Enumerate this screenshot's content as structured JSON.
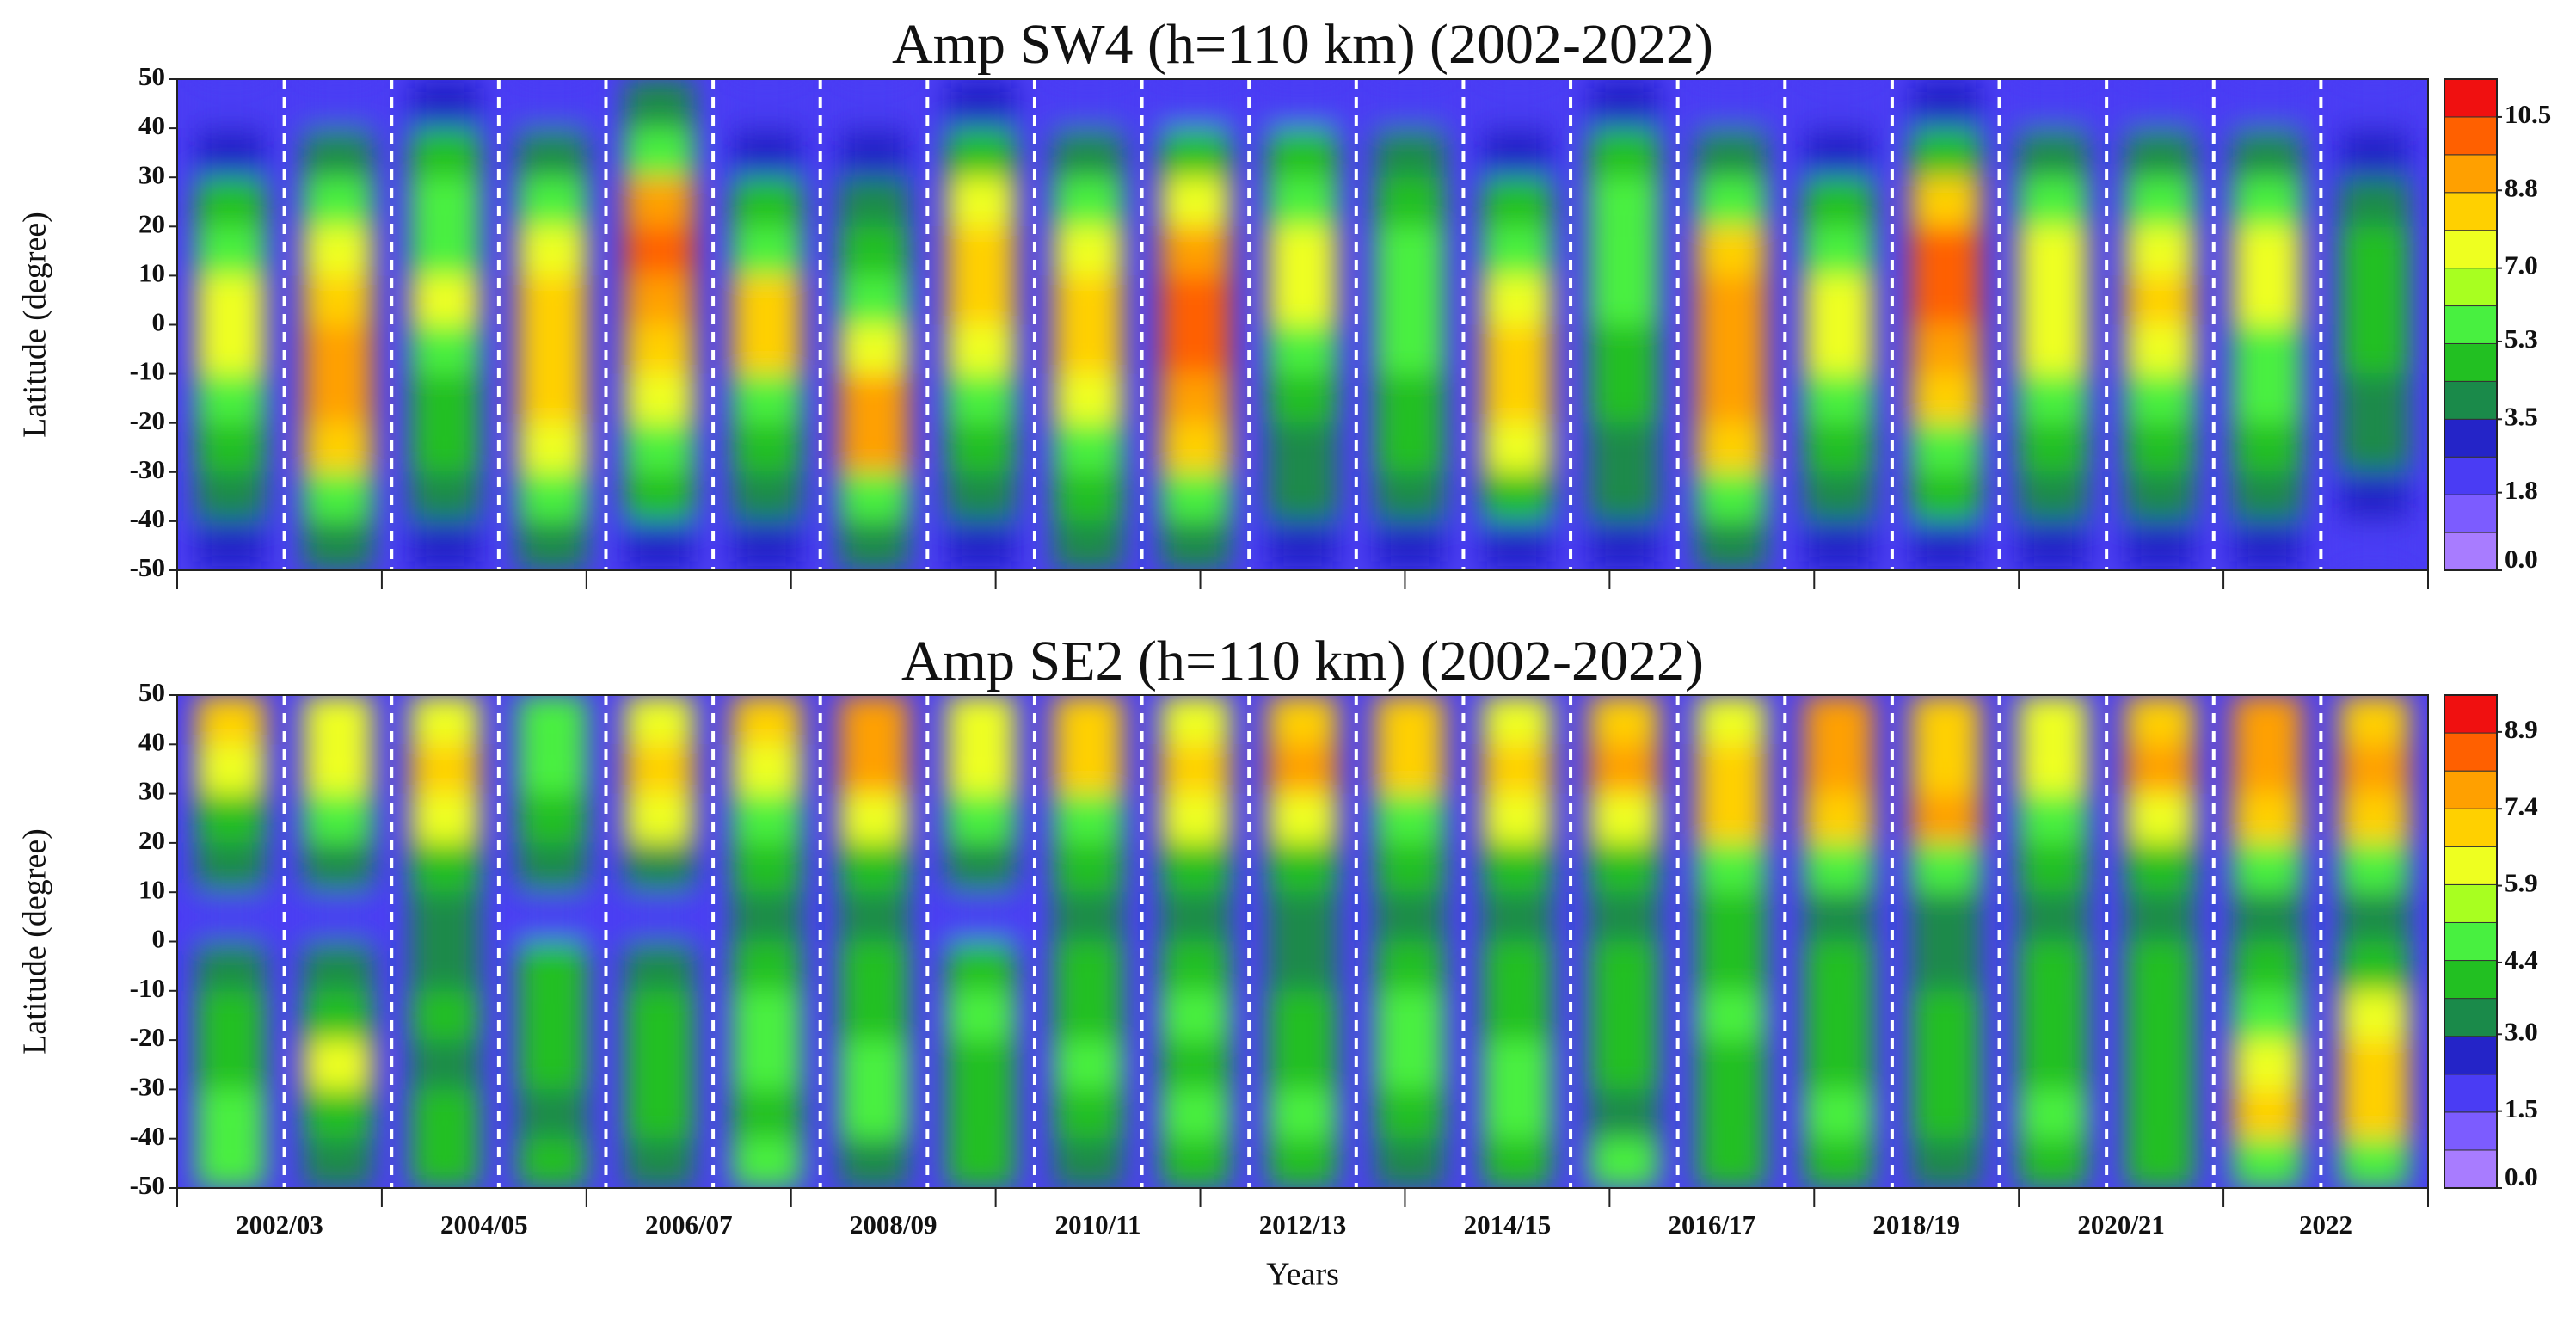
{
  "chart_data": [
    {
      "type": "heatmap",
      "title": "Amp SW4 (h=110 km) (2002-2022)",
      "ylabel": "Latitude (degree)",
      "ylim": [
        -50,
        50
      ],
      "yticks": [
        -50,
        -40,
        -30,
        -20,
        -10,
        0,
        10,
        20,
        30,
        40,
        50
      ],
      "y": [
        45,
        35,
        25,
        15,
        5,
        -5,
        -15,
        -25,
        -35,
        -45
      ],
      "z": [
        [
          2,
          3,
          5,
          6,
          7,
          7,
          6,
          5,
          4,
          3
        ],
        [
          2,
          4,
          6,
          7,
          8,
          9,
          9,
          8,
          6,
          4
        ],
        [
          3,
          5,
          6,
          6,
          7,
          6,
          5,
          5,
          4,
          3
        ],
        [
          2,
          4,
          6,
          7,
          8,
          8,
          8,
          7,
          6,
          4
        ],
        [
          4,
          6,
          9,
          10,
          9,
          8,
          7,
          6,
          5,
          3
        ],
        [
          2,
          3,
          5,
          6,
          8,
          8,
          6,
          5,
          4,
          3
        ],
        [
          2,
          3,
          4,
          5,
          6,
          7,
          9,
          9,
          6,
          4
        ],
        [
          3,
          5,
          7,
          8,
          8,
          7,
          6,
          5,
          4,
          3
        ],
        [
          2,
          4,
          6,
          7,
          8,
          8,
          7,
          6,
          5,
          4
        ],
        [
          2,
          5,
          7,
          9,
          10,
          10,
          9,
          8,
          6,
          4
        ],
        [
          2,
          5,
          6,
          7,
          7,
          6,
          5,
          4,
          4,
          3
        ],
        [
          2,
          4,
          5,
          6,
          6,
          6,
          5,
          5,
          4,
          3
        ],
        [
          2,
          3,
          5,
          6,
          7,
          8,
          8,
          7,
          5,
          3
        ],
        [
          3,
          5,
          6,
          6,
          6,
          5,
          5,
          4,
          4,
          3
        ],
        [
          2,
          4,
          6,
          8,
          9,
          9,
          9,
          8,
          6,
          4
        ],
        [
          2,
          3,
          5,
          6,
          7,
          7,
          6,
          5,
          4,
          3
        ],
        [
          3,
          5,
          8,
          10,
          10,
          9,
          8,
          6,
          5,
          3
        ],
        [
          2,
          4,
          6,
          7,
          7,
          7,
          6,
          5,
          4,
          3
        ],
        [
          2,
          4,
          6,
          7,
          8,
          7,
          6,
          5,
          4,
          3
        ],
        [
          2,
          4,
          6,
          7,
          7,
          6,
          6,
          5,
          4,
          3
        ],
        [
          2,
          3,
          4,
          5,
          5,
          5,
          4,
          4,
          3,
          2
        ]
      ],
      "zlim": [
        0,
        11.375
      ],
      "colors": [
        "#a87cff",
        "#7c5cff",
        "#4a3cf4",
        "#2424c8",
        "#1a8a4a",
        "#22c022",
        "#48f040",
        "#a8ff20",
        "#eeff20",
        "#ffd000",
        "#ffa000",
        "#ff6000",
        "#f01010"
      ],
      "cticks": [
        {
          "value": 0,
          "label": "0.0"
        },
        1.8,
        3.5,
        5.3,
        {
          "value": 7,
          "label": "7.0"
        },
        8.8,
        10.5
      ]
    },
    {
      "type": "heatmap",
      "title": "Amp SE2 (h=110 km) (2002-2022)",
      "ylabel": "Latitude (degree)",
      "xlabel": "Years",
      "categories": [
        "2002/03",
        "2004/05",
        "2006/07",
        "2008/09",
        "2010/11",
        "2012/13",
        "2014/15",
        "2016/17",
        "2018/19",
        "2020/21",
        "2022"
      ],
      "ylim": [
        -50,
        50
      ],
      "yticks": [
        -50,
        -40,
        -30,
        -20,
        -10,
        0,
        10,
        20,
        30,
        40,
        50
      ],
      "y": [
        45,
        35,
        25,
        15,
        5,
        -5,
        -15,
        -25,
        -35,
        -45
      ],
      "z": [
        [
          7,
          6,
          4,
          3,
          2,
          3,
          4,
          4,
          5,
          5
        ],
        [
          6,
          6,
          5,
          3,
          2,
          3,
          4,
          6,
          4,
          3
        ],
        [
          6,
          7,
          6,
          4,
          3,
          3,
          4,
          3,
          4,
          4
        ],
        [
          5,
          5,
          4,
          3,
          2,
          4,
          4,
          4,
          3,
          4
        ],
        [
          6,
          7,
          6,
          3,
          2,
          3,
          4,
          4,
          4,
          3
        ],
        [
          7,
          6,
          5,
          4,
          3,
          4,
          5,
          5,
          4,
          5
        ],
        [
          8,
          8,
          6,
          4,
          3,
          4,
          4,
          5,
          5,
          3
        ],
        [
          6,
          6,
          5,
          3,
          2,
          4,
          5,
          4,
          4,
          4
        ],
        [
          7,
          7,
          5,
          4,
          3,
          4,
          4,
          5,
          4,
          3
        ],
        [
          6,
          7,
          6,
          4,
          3,
          4,
          5,
          4,
          5,
          4
        ],
        [
          7,
          8,
          6,
          4,
          3,
          3,
          4,
          4,
          5,
          4
        ],
        [
          7,
          7,
          5,
          4,
          3,
          4,
          5,
          5,
          4,
          3
        ],
        [
          6,
          7,
          6,
          4,
          3,
          4,
          4,
          5,
          5,
          4
        ],
        [
          7,
          8,
          6,
          4,
          3,
          4,
          4,
          4,
          3,
          5
        ],
        [
          6,
          7,
          7,
          5,
          4,
          4,
          5,
          4,
          4,
          4
        ],
        [
          8,
          8,
          7,
          5,
          3,
          4,
          4,
          4,
          5,
          4
        ],
        [
          7,
          7,
          8,
          5,
          3,
          3,
          4,
          4,
          4,
          3
        ],
        [
          6,
          6,
          5,
          4,
          3,
          4,
          4,
          4,
          5,
          4
        ],
        [
          7,
          8,
          6,
          4,
          3,
          4,
          4,
          4,
          4,
          4
        ],
        [
          8,
          8,
          7,
          5,
          3,
          4,
          5,
          6,
          7,
          5
        ],
        [
          7,
          8,
          7,
          5,
          3,
          4,
          6,
          7,
          7,
          5
        ]
      ],
      "zlim": [
        0,
        9.62
      ],
      "colors": [
        "#a87cff",
        "#7c5cff",
        "#4a3cf4",
        "#2424c8",
        "#1a8a4a",
        "#22c022",
        "#48f040",
        "#a8ff20",
        "#eeff20",
        "#ffd000",
        "#ffa000",
        "#ff6000",
        "#f01010"
      ],
      "cticks": [
        {
          "value": 0,
          "label": "0.0"
        },
        1.5,
        {
          "value": 3,
          "label": "3.0"
        },
        4.4,
        5.9,
        7.4,
        8.9
      ]
    }
  ]
}
